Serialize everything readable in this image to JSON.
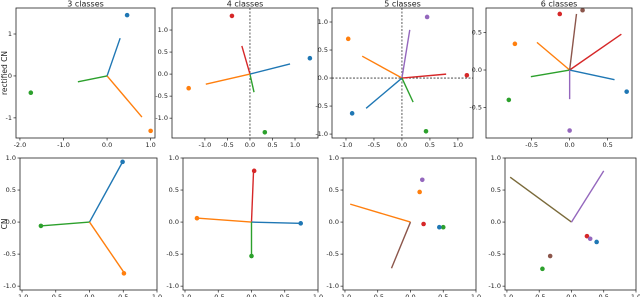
{
  "chart_data": [
    {
      "type": "scatter",
      "title": "3 classes",
      "ylabel": "rectified CN",
      "xlim": [
        -2.09,
        1.1
      ],
      "ylim": [
        -1.48,
        1.62
      ],
      "xticks": [
        {
          "value": -2,
          "label": "-2.0"
        },
        {
          "value": -1,
          "label": "-1.0"
        },
        {
          "value": 0,
          "label": "0.0"
        },
        {
          "value": 1,
          "label": "1.0"
        }
      ],
      "yticks": [
        1,
        0,
        -1
      ],
      "vline_at_zero": false,
      "hline_at_zero": false,
      "points": [
        {
          "color": "#1f77b4",
          "x": 0.46,
          "y": 1.45
        },
        {
          "color": "#ff7f0e",
          "x": 1.0,
          "y": -1.31
        },
        {
          "color": "#2ca02c",
          "x": -1.75,
          "y": -0.4
        }
      ],
      "segments": [
        {
          "color": "#1f77b4",
          "x": [
            0,
            0.3
          ],
          "y": [
            0,
            0.9
          ]
        },
        {
          "color": "#ff7f0e",
          "x": [
            0,
            0.8
          ],
          "y": [
            0,
            -0.98
          ]
        },
        {
          "color": "#2ca02c",
          "x": [
            0,
            -0.67
          ],
          "y": [
            0,
            -0.14
          ]
        }
      ]
    },
    {
      "type": "scatter",
      "title": "4 classes",
      "xlim": [
        -1.73,
        1.51
      ],
      "ylim": [
        -1.45,
        1.5
      ],
      "xticks": [
        {
          "value": -1,
          "label": "-1.0"
        },
        -0.5,
        {
          "value": 0,
          "label": "0.0"
        },
        0.5,
        {
          "value": 1,
          "label": "1.0"
        }
      ],
      "yticks": [
        {
          "value": 1,
          "label": "1.0"
        },
        0.5,
        {
          "value": 0,
          "label": "0.0"
        },
        -0.5,
        {
          "value": -1,
          "label": "-1.0"
        }
      ],
      "vline_at_zero": true,
      "hline_at_zero": false,
      "points": [
        {
          "color": "#d62728",
          "x": -0.4,
          "y": 1.32
        },
        {
          "color": "#2ca02c",
          "x": 0.33,
          "y": -1.32
        },
        {
          "color": "#1f77b4",
          "x": 1.33,
          "y": 0.36
        },
        {
          "color": "#ff7f0e",
          "x": -1.36,
          "y": -0.32
        }
      ],
      "segments": [
        {
          "color": "#d62728",
          "x": [
            0,
            -0.18
          ],
          "y": [
            0,
            0.64
          ]
        },
        {
          "color": "#2ca02c",
          "x": [
            0,
            0.09
          ],
          "y": [
            0,
            -0.41
          ]
        },
        {
          "color": "#1f77b4",
          "x": [
            0,
            0.89
          ],
          "y": [
            0,
            0.23
          ]
        },
        {
          "color": "#ff7f0e",
          "x": [
            0,
            -0.98
          ],
          "y": [
            0,
            -0.23
          ]
        }
      ]
    },
    {
      "type": "scatter",
      "title": "5 classes",
      "xlim": [
        -1.25,
        1.27
      ],
      "ylim": [
        -1.07,
        1.25
      ],
      "xticks": [
        {
          "value": -1,
          "label": "-1.0"
        },
        -0.5,
        {
          "value": 0,
          "label": "0.0"
        },
        0.5,
        {
          "value": 1,
          "label": "1.0"
        }
      ],
      "yticks": [
        {
          "value": 1,
          "label": "1.0"
        },
        0.5,
        {
          "value": 0,
          "label": "0.0"
        },
        -0.5,
        {
          "value": -1,
          "label": "-1.0"
        }
      ],
      "vline_at_zero": true,
      "hline_at_zero": true,
      "points": [
        {
          "color": "#9467bd",
          "x": 0.45,
          "y": 1.09
        },
        {
          "color": "#1f77b4",
          "x": -0.89,
          "y": -0.63
        },
        {
          "color": "#ff7f0e",
          "x": -0.96,
          "y": 0.7
        },
        {
          "color": "#d62728",
          "x": 1.16,
          "y": 0.05
        },
        {
          "color": "#2ca02c",
          "x": 0.43,
          "y": -0.95
        }
      ],
      "segments": [
        {
          "color": "#ff7f0e",
          "x": [
            0,
            -0.71
          ],
          "y": [
            0,
            0.39
          ]
        },
        {
          "color": "#1f77b4",
          "x": [
            0,
            -0.64
          ],
          "y": [
            0,
            -0.54
          ]
        },
        {
          "color": "#9467bd",
          "x": [
            0,
            0.14
          ],
          "y": [
            0,
            0.86
          ]
        },
        {
          "color": "#d62728",
          "x": [
            0,
            0.79
          ],
          "y": [
            0,
            0.07
          ]
        },
        {
          "color": "#2ca02c",
          "x": [
            0,
            0.2
          ],
          "y": [
            0,
            -0.43
          ]
        }
      ]
    },
    {
      "type": "scatter",
      "title": "6 classes",
      "xlim": [
        -1.1,
        0.82
      ],
      "ylim": [
        -0.91,
        0.83
      ],
      "xticks": [
        -0.5,
        {
          "value": 0,
          "label": "0.0"
        },
        0.5
      ],
      "yticks": [
        0.5,
        {
          "value": 0,
          "label": "0.0"
        },
        -0.5
      ],
      "vline_at_zero": false,
      "hline_at_zero": false,
      "points": [
        {
          "color": "#d62728",
          "x": -0.13,
          "y": 0.75
        },
        {
          "color": "#ff7f0e",
          "x": -0.72,
          "y": 0.35
        },
        {
          "color": "#2ca02c",
          "x": -0.8,
          "y": -0.4
        },
        {
          "color": "#1f77b4",
          "x": 0.75,
          "y": -0.29
        },
        {
          "color": "#9467bd",
          "x": 0,
          "y": -0.81
        },
        {
          "color": "#8c564b",
          "x": 0.17,
          "y": 0.8
        }
      ],
      "segments": [
        {
          "color": "#ff7f0e",
          "x": [
            0,
            -0.43
          ],
          "y": [
            0,
            0.37
          ]
        },
        {
          "color": "#2ca02c",
          "x": [
            0,
            -0.51
          ],
          "y": [
            0,
            -0.09
          ]
        },
        {
          "color": "#d62728",
          "x": [
            0,
            0.68
          ],
          "y": [
            0,
            0.48
          ]
        },
        {
          "color": "#1f77b4",
          "x": [
            0,
            0.59
          ],
          "y": [
            0,
            -0.13
          ]
        },
        {
          "color": "#9467bd",
          "x": [
            0,
            0
          ],
          "y": [
            0,
            -0.39
          ]
        },
        {
          "color": "#8c564b",
          "x": [
            0,
            0.09
          ],
          "y": [
            0,
            0.75
          ]
        }
      ]
    },
    {
      "type": "scatter",
      "ylabel": "CN",
      "xlim": [
        -1.03,
        1.0
      ],
      "ylim": [
        -1.06,
        1.0
      ],
      "xticks": [
        {
          "value": -1,
          "label": "-1.0"
        },
        -0.5,
        {
          "value": 0,
          "label": "0.0"
        },
        0.5,
        {
          "value": 1,
          "label": "1.0"
        }
      ],
      "yticks": [
        {
          "value": 1,
          "label": "1.0"
        },
        0.5,
        {
          "value": 0,
          "label": "0.0"
        },
        -0.5,
        {
          "value": -1,
          "label": "-1.0"
        }
      ],
      "vline_at_zero": false,
      "hline_at_zero": false,
      "points": [
        {
          "color": "#1f77b4",
          "x": 0.49,
          "y": 0.94
        },
        {
          "color": "#2ca02c",
          "x": -0.72,
          "y": -0.06
        },
        {
          "color": "#ff7f0e",
          "x": 0.51,
          "y": -0.8
        }
      ],
      "segments": [
        {
          "color": "#1f77b4",
          "x": [
            0,
            0.48
          ],
          "y": [
            0,
            0.92
          ]
        },
        {
          "color": "#2ca02c",
          "x": [
            0,
            -0.73
          ],
          "y": [
            0,
            -0.06
          ]
        },
        {
          "color": "#ff7f0e",
          "x": [
            0,
            0.5
          ],
          "y": [
            0,
            -0.77
          ]
        }
      ]
    },
    {
      "type": "scatter",
      "xlim": [
        -1.03,
        1.0
      ],
      "ylim": [
        -1.06,
        1.0
      ],
      "xticks": [
        {
          "value": -1,
          "label": "-1.0"
        },
        -0.5,
        {
          "value": 0,
          "label": "0.0"
        },
        0.5,
        {
          "value": 1,
          "label": "1.0"
        }
      ],
      "yticks": [
        {
          "value": 1,
          "label": "1.0"
        },
        0.5,
        {
          "value": 0,
          "label": "0.0"
        },
        -0.5,
        {
          "value": -1,
          "label": "-1.0"
        }
      ],
      "vline_at_zero": false,
      "hline_at_zero": false,
      "points": [
        {
          "color": "#d62728",
          "x": 0.04,
          "y": 0.8
        },
        {
          "color": "#ff7f0e",
          "x": -0.82,
          "y": 0.06
        },
        {
          "color": "#1f77b4",
          "x": 0.74,
          "y": -0.02
        },
        {
          "color": "#2ca02c",
          "x": 0,
          "y": -0.53
        }
      ],
      "segments": [
        {
          "color": "#d62728",
          "x": [
            0,
            0.03
          ],
          "y": [
            0,
            0.78
          ]
        },
        {
          "color": "#ff7f0e",
          "x": [
            0,
            -0.8
          ],
          "y": [
            0,
            0.06
          ]
        },
        {
          "color": "#1f77b4",
          "x": [
            0,
            0.72
          ],
          "y": [
            0,
            -0.02
          ]
        },
        {
          "color": "#2ca02c",
          "x": [
            0,
            0
          ],
          "y": [
            0,
            -0.52
          ]
        }
      ]
    },
    {
      "type": "scatter",
      "xlim": [
        -1.03,
        1.0
      ],
      "ylim": [
        -1.06,
        1.0
      ],
      "xticks": [
        {
          "value": -1,
          "label": "-1.0"
        },
        -0.5,
        {
          "value": 0,
          "label": "0.0"
        },
        0.5,
        {
          "value": 1,
          "label": "1.0"
        }
      ],
      "yticks": [
        {
          "value": 1,
          "label": "1.0"
        },
        0.5,
        {
          "value": 0,
          "label": "0.0"
        },
        -0.5,
        {
          "value": -1,
          "label": "-1.0"
        }
      ],
      "vline_at_zero": false,
      "hline_at_zero": false,
      "points": [
        {
          "color": "#9467bd",
          "x": 0.18,
          "y": 0.66
        },
        {
          "color": "#ff7f0e",
          "x": 0.14,
          "y": 0.47
        },
        {
          "color": "#d62728",
          "x": 0.2,
          "y": -0.03
        },
        {
          "color": "#2ca02c",
          "x": 0.5,
          "y": -0.08
        },
        {
          "color": "#1f77b4",
          "x": 0.44,
          "y": -0.08
        }
      ],
      "segments": [
        {
          "color": "#ff7f0e",
          "x": [
            0,
            -0.92
          ],
          "y": [
            0,
            0.28
          ]
        },
        {
          "color": "#8c564b",
          "x": [
            0,
            -0.29
          ],
          "y": [
            0,
            -0.72
          ]
        }
      ]
    },
    {
      "type": "scatter",
      "xlim": [
        -1.03,
        1.0
      ],
      "ylim": [
        -1.06,
        1.0
      ],
      "xticks": [
        {
          "value": -1,
          "label": "-1.0"
        },
        -0.5,
        {
          "value": 0,
          "label": "0.0"
        },
        0.5,
        {
          "value": 1,
          "label": "1.0"
        }
      ],
      "yticks": [
        {
          "value": 1,
          "label": "1.0"
        },
        0.5,
        {
          "value": 0,
          "label": "0.0"
        },
        -0.5,
        {
          "value": -1,
          "label": "-1.0"
        }
      ],
      "vline_at_zero": false,
      "hline_at_zero": false,
      "points": [
        {
          "color": "#d62728",
          "x": 0.24,
          "y": -0.22
        },
        {
          "color": "#9467bd",
          "x": 0.29,
          "y": -0.26
        },
        {
          "color": "#1f77b4",
          "x": 0.39,
          "y": -0.31
        },
        {
          "color": "#8c564b",
          "x": -0.33,
          "y": -0.53
        },
        {
          "color": "#2ca02c",
          "x": -0.45,
          "y": -0.73
        }
      ],
      "segments": [
        {
          "color": "#7a6a3a",
          "x": [
            0,
            -0.95
          ],
          "y": [
            0,
            0.7
          ]
        },
        {
          "color": "#9467bd",
          "x": [
            0,
            0.5
          ],
          "y": [
            0,
            0.8
          ]
        }
      ]
    }
  ]
}
